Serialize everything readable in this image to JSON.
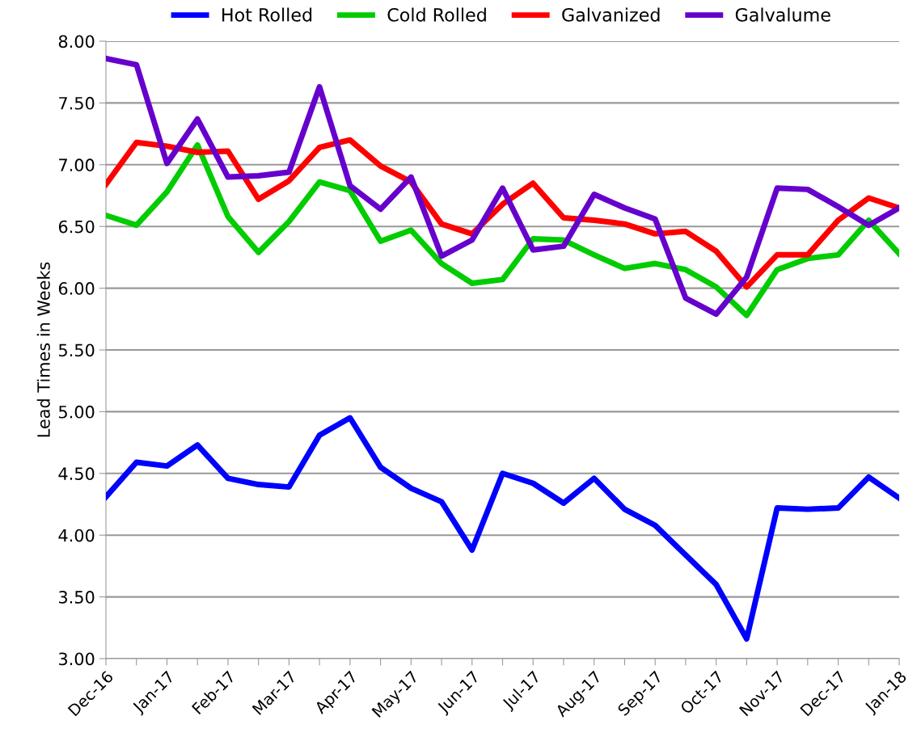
{
  "chart_data": {
    "type": "line",
    "ylabel": "Lead Times in Weeks",
    "categories": [
      "Dec-16",
      null,
      "Jan-17",
      null,
      "Feb-17",
      null,
      "Mar-17",
      null,
      "Apr-17",
      null,
      "May-17",
      null,
      "Jun-17",
      null,
      "Jul-17",
      null,
      "Aug-17",
      null,
      "Sep-17",
      null,
      "Oct-17",
      null,
      "Nov-17",
      null,
      "Dec-17",
      null,
      "Jan-18"
    ],
    "series": [
      {
        "name": "Hot Rolled",
        "color": "#0000ff",
        "values": [
          4.31,
          4.59,
          4.56,
          4.73,
          4.46,
          4.41,
          4.39,
          4.81,
          4.95,
          4.55,
          4.38,
          4.27,
          3.88,
          4.5,
          4.42,
          4.26,
          4.46,
          4.21,
          4.08,
          3.84,
          3.6,
          3.16,
          4.22,
          4.21,
          4.22,
          4.47,
          4.3
        ]
      },
      {
        "name": "Cold Rolled",
        "color": "#00cc00",
        "values": [
          6.59,
          6.51,
          6.78,
          7.16,
          6.58,
          6.29,
          6.54,
          6.86,
          6.79,
          6.38,
          6.47,
          6.2,
          6.04,
          6.07,
          6.4,
          6.39,
          6.27,
          6.16,
          6.2,
          6.15,
          6.01,
          5.78,
          6.15,
          6.24,
          6.27,
          6.55,
          6.28
        ]
      },
      {
        "name": "Galvanized",
        "color": "#ff0000",
        "values": [
          6.84,
          7.18,
          7.15,
          7.1,
          7.11,
          6.72,
          6.87,
          7.14,
          7.2,
          6.99,
          6.86,
          6.52,
          6.44,
          6.68,
          6.85,
          6.57,
          6.55,
          6.52,
          6.44,
          6.46,
          6.3,
          6.01,
          6.27,
          6.27,
          6.55,
          6.73,
          6.65
        ]
      },
      {
        "name": "Galvalume",
        "color": "#6600cc",
        "values": [
          7.86,
          7.81,
          7.01,
          7.37,
          6.9,
          6.91,
          6.94,
          7.63,
          6.83,
          6.64,
          6.9,
          6.26,
          6.39,
          6.81,
          6.31,
          6.34,
          6.76,
          6.65,
          6.56,
          5.92,
          5.79,
          6.09,
          6.81,
          6.8,
          6.66,
          6.51,
          6.65
        ]
      }
    ],
    "ylim": [
      3.0,
      8.0
    ],
    "yticks": [
      {
        "value": 3.0,
        "label": "3.00"
      },
      {
        "value": 3.5,
        "label": "3.50"
      },
      {
        "value": 4.0,
        "label": "4.00"
      },
      {
        "value": 4.5,
        "label": "4.50"
      },
      {
        "value": 5.0,
        "label": "5.00"
      },
      {
        "value": 5.5,
        "label": "5.50"
      },
      {
        "value": 6.0,
        "label": "6.00"
      },
      {
        "value": 6.5,
        "label": "6.50"
      },
      {
        "value": 7.0,
        "label": "7.00"
      },
      {
        "value": 7.5,
        "label": "7.50"
      },
      {
        "value": 8.0,
        "label": "8.00"
      }
    ],
    "grid": "y",
    "legend": "top",
    "marker": "none",
    "line_style": "solid"
  }
}
